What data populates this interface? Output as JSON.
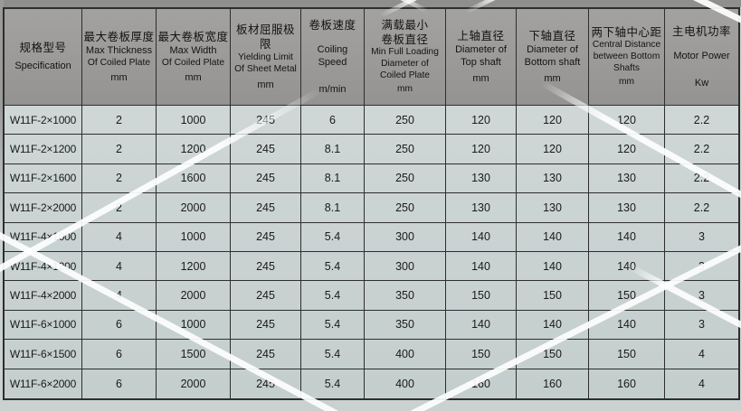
{
  "colors": {
    "page_background": "#c9d2d1",
    "header_background": "#9b9a98",
    "cell_background": "#ccd5d4",
    "grid_line": "#2d2e2d",
    "streak": "#fdfefe"
  },
  "table": {
    "columns": [
      {
        "lines": [
          "规格型号",
          "Specification"
        ]
      },
      {
        "lines": [
          "最大卷板厚度",
          "Max Thickness",
          "Of Coiled Plate",
          "mm"
        ]
      },
      {
        "lines": [
          "最大卷板宽度",
          "Max Width",
          "Of Coiled Plate",
          "mm"
        ]
      },
      {
        "lines": [
          "板材屈服极限",
          "Yielding Limit",
          "Of Sheet Metal",
          "mm"
        ]
      },
      {
        "lines": [
          "卷板速度",
          "Coiling Speed",
          "m/min"
        ]
      },
      {
        "lines": [
          "满载最小",
          "卷板直径",
          "Min Full Loading",
          "Diameter of",
          "Coiled Plate",
          "mm"
        ]
      },
      {
        "lines": [
          "上轴直径",
          "Diameter of",
          "Top shaft",
          "mm"
        ]
      },
      {
        "lines": [
          "下轴直径",
          "Diameter of",
          "Bottom shaft",
          "mm"
        ]
      },
      {
        "lines": [
          "两下轴中心距",
          "Central Distance",
          "between Bottom",
          "Shafts",
          "mm"
        ]
      },
      {
        "lines": [
          "主电机功率",
          "Motor Power",
          "Kw"
        ]
      }
    ],
    "rows": [
      [
        "W11F-2×1000",
        "2",
        "1000",
        "245",
        "6",
        "250",
        "120",
        "120",
        "120",
        "2.2"
      ],
      [
        "W11F-2×1200",
        "2",
        "1200",
        "245",
        "8.1",
        "250",
        "120",
        "120",
        "120",
        "2.2"
      ],
      [
        "W11F-2×1600",
        "2",
        "1600",
        "245",
        "8.1",
        "250",
        "130",
        "130",
        "130",
        "2.2"
      ],
      [
        "W11F-2×2000",
        "2",
        "2000",
        "245",
        "8.1",
        "250",
        "130",
        "130",
        "130",
        "2.2"
      ],
      [
        "W11F-4×1000",
        "4",
        "1000",
        "245",
        "5.4",
        "300",
        "140",
        "140",
        "140",
        "3"
      ],
      [
        "W11F-4×1200",
        "4",
        "1200",
        "245",
        "5.4",
        "300",
        "140",
        "140",
        "140",
        "3"
      ],
      [
        "W11F-4×2000",
        "4",
        "2000",
        "245",
        "5.4",
        "350",
        "150",
        "150",
        "150",
        "3"
      ],
      [
        "W11F-6×1000",
        "6",
        "1000",
        "245",
        "5.4",
        "350",
        "140",
        "140",
        "140",
        "3"
      ],
      [
        "W11F-6×1500",
        "6",
        "1500",
        "245",
        "5.4",
        "400",
        "150",
        "150",
        "150",
        "4"
      ],
      [
        "W11F-6×2000",
        "6",
        "2000",
        "245",
        "5.4",
        "400",
        "160",
        "160",
        "160",
        "4"
      ]
    ],
    "units": [
      "mm",
      "Kw",
      "m/min"
    ]
  }
}
